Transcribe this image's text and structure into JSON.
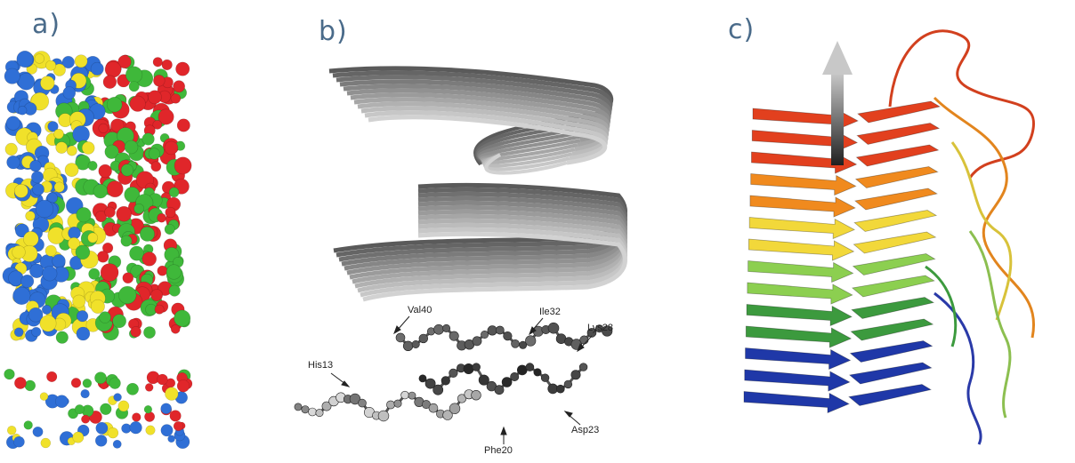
{
  "figure": {
    "panels": [
      {
        "label": "a)"
      },
      {
        "label": "b)"
      },
      {
        "label": "c)"
      }
    ],
    "panel_b_residues": {
      "val40": "Val40",
      "ile32": "Ile32",
      "lys28": "Lys28",
      "his13": "His13",
      "asp23": "Asp23",
      "phe20": "Phe20"
    },
    "colors": {
      "panel_label": "#4a6b8a",
      "surface": [
        "#2f6fd6",
        "#f0e12a",
        "#e0262a",
        "#3fb83a"
      ],
      "strand_gradient": [
        "#e2401e",
        "#f08a1e",
        "#f2d83a",
        "#8ccf50",
        "#3c9a3e",
        "#1f38a8"
      ]
    }
  }
}
